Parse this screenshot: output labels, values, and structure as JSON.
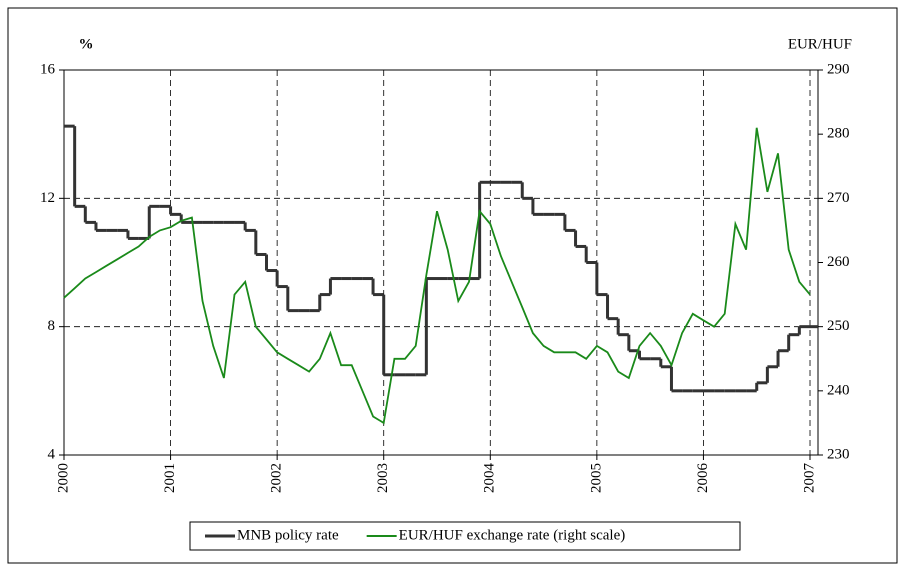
{
  "chart_data": {
    "type": "line",
    "y_label": "%",
    "y2_label": "EUR/HUF",
    "x": [
      2000.0,
      2000.1,
      2000.2,
      2000.3,
      2000.4,
      2000.5,
      2000.6,
      2000.7,
      2000.8,
      2000.9,
      2001.0,
      2001.1,
      2001.2,
      2001.3,
      2001.4,
      2001.5,
      2001.6,
      2001.7,
      2001.8,
      2001.9,
      2002.0,
      2002.1,
      2002.2,
      2002.3,
      2002.4,
      2002.5,
      2002.6,
      2002.7,
      2002.8,
      2002.9,
      2003.0,
      2003.1,
      2003.2,
      2003.3,
      2003.4,
      2003.5,
      2003.6,
      2003.7,
      2003.8,
      2003.9,
      2004.0,
      2004.1,
      2004.2,
      2004.3,
      2004.4,
      2004.5,
      2004.6,
      2004.7,
      2004.8,
      2004.9,
      2005.0,
      2005.1,
      2005.2,
      2005.3,
      2005.4,
      2005.5,
      2005.6,
      2005.7,
      2005.8,
      2005.9,
      2006.0,
      2006.1,
      2006.2,
      2006.3,
      2006.4,
      2006.5,
      2006.6,
      2006.7,
      2006.8,
      2006.9,
      2007.0
    ],
    "series": [
      {
        "name": "MNB policy rate",
        "color": "#333333",
        "step": true,
        "values": [
          14.25,
          11.75,
          11.25,
          11.0,
          11.0,
          11.0,
          10.75,
          10.75,
          11.75,
          11.75,
          11.5,
          11.25,
          11.25,
          11.25,
          11.25,
          11.25,
          11.25,
          11.0,
          10.25,
          9.75,
          9.25,
          8.5,
          8.5,
          8.5,
          9.0,
          9.5,
          9.5,
          9.5,
          9.5,
          9.0,
          6.5,
          6.5,
          6.5,
          6.5,
          9.5,
          9.5,
          9.5,
          9.5,
          9.5,
          12.5,
          12.5,
          12.5,
          12.5,
          12.0,
          11.5,
          11.5,
          11.5,
          11.0,
          10.5,
          10.0,
          9.0,
          8.25,
          7.75,
          7.25,
          7.0,
          7.0,
          6.75,
          6.0,
          6.0,
          6.0,
          6.0,
          6.0,
          6.0,
          6.0,
          6.0,
          6.25,
          6.75,
          7.25,
          7.75,
          8.0,
          8.0
        ]
      },
      {
        "name": "EUR/HUF exchange rate (right scale)",
        "color": "#1a8a1a",
        "axis": "y2",
        "step": false,
        "values": [
          254.5,
          256,
          257.5,
          258.5,
          259.5,
          260.5,
          261.5,
          262.5,
          264,
          265,
          265.5,
          266.5,
          267,
          254,
          247,
          242,
          255,
          257,
          250,
          248,
          246,
          245,
          244,
          243,
          245,
          249,
          244,
          244,
          240,
          236,
          235,
          245,
          245,
          247,
          258,
          268,
          262,
          254,
          257,
          268,
          266,
          261,
          257,
          253,
          249,
          247,
          246,
          246,
          246,
          245,
          247,
          246,
          243,
          242,
          247,
          249,
          247,
          244,
          249,
          252,
          251,
          250,
          252,
          266,
          262,
          281,
          271,
          277,
          262,
          257,
          255
        ]
      }
    ],
    "xlim": [
      2000,
      2007.075
    ],
    "xticks": [
      2000,
      2001,
      2002,
      2003,
      2004,
      2005,
      2006,
      2007
    ],
    "ylim": [
      4,
      16
    ],
    "yticks": [
      4,
      8,
      12,
      16
    ],
    "y2lim": [
      230,
      290
    ],
    "y2ticks": [
      230,
      240,
      250,
      260,
      270,
      280,
      290
    ],
    "grid": true,
    "legend": "bottom"
  }
}
